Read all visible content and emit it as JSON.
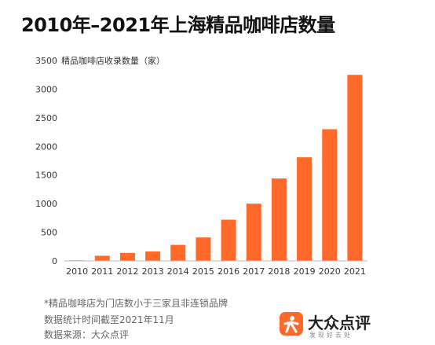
{
  "chart_data": {
    "type": "bar",
    "title": "2010年–2021年上海精品咖啡店数量",
    "ylabel": "精品咖啡店收录数量（家）",
    "xlabel": "",
    "categories": [
      "2010",
      "2011",
      "2012",
      "2013",
      "2014",
      "2015",
      "2016",
      "2017",
      "2018",
      "2019",
      "2020",
      "2021"
    ],
    "values": [
      10,
      90,
      140,
      165,
      280,
      410,
      720,
      1000,
      1440,
      1810,
      2300,
      3250
    ],
    "ylim": [
      0,
      3500
    ],
    "yticks": [
      0,
      500,
      1000,
      1500,
      2000,
      2500,
      3000,
      3500
    ],
    "bar_color": "#ff6a2b",
    "grid": false,
    "legend": "none"
  },
  "footnotes": {
    "note1": "*精品咖啡店为门店数小于三家且非连锁品牌",
    "note2": "数据统计时间截至2021年11月",
    "note3": "数据来源：大众点评"
  },
  "brand": {
    "name": "大众点评",
    "slogan": "发现好去处",
    "logo_color": "#ff6a2b"
  }
}
